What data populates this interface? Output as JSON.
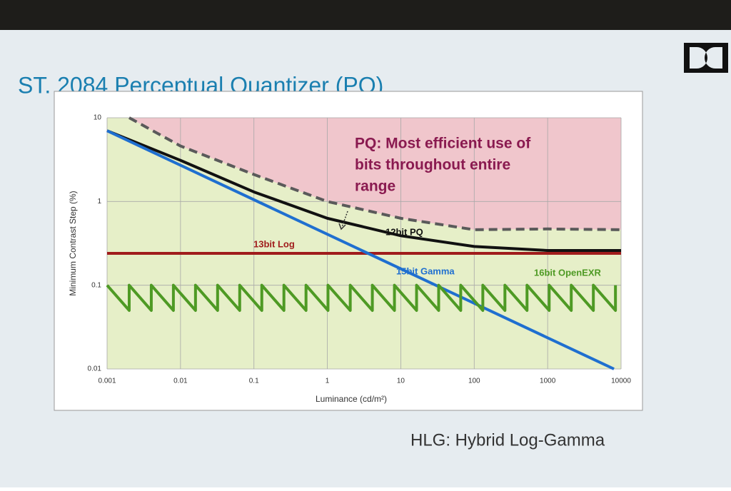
{
  "slide": {
    "title": "ST. 2084 Perceptual Quantizer (PQ)",
    "footer": "HLG: Hybrid Log-Gamma"
  },
  "chart_data": {
    "type": "line",
    "xlabel": "Luminance (cd/m²)",
    "ylabel": "Minimum Contrast Step (%)",
    "annotation": [
      "PQ: Most efficient use of",
      "bits throughout entire",
      "range"
    ],
    "xscale": "log",
    "yscale": "log",
    "grid": true,
    "xlim": [
      0.001,
      10000
    ],
    "ylim": [
      0.01,
      10
    ],
    "xticks": [
      0.001,
      0.01,
      0.1,
      1,
      10,
      100,
      1000,
      10000
    ],
    "yticks": [
      0.01,
      0.1,
      1,
      10
    ],
    "series": [
      {
        "color": "#5a5a5a",
        "dashed": true,
        "x": [
          0.002,
          0.01,
          0.1,
          1,
          10,
          100,
          1000,
          10000
        ],
        "values": [
          10,
          4.6,
          2.1,
          1.0,
          0.63,
          0.46,
          0.47,
          0.46
        ]
      },
      {
        "name": "12bit PQ",
        "color": "#111111",
        "x": [
          0.001,
          0.01,
          0.1,
          1,
          10,
          100,
          1000,
          10000
        ],
        "values": [
          7,
          3.1,
          1.3,
          0.63,
          0.39,
          0.29,
          0.26,
          0.26
        ]
      },
      {
        "name": "13bit Log",
        "color": "#a01c1c",
        "x": [
          0.001,
          10000
        ],
        "values": [
          0.24,
          0.24
        ]
      },
      {
        "name": "15bit Gamma",
        "color": "#1f6fd0",
        "x": [
          0.001,
          8000
        ],
        "values": [
          7,
          0.01
        ]
      },
      {
        "name": "16bit OpenEXR",
        "color": "#4e9a24",
        "x": [
          0.001,
          0.002,
          0.002,
          0.004,
          0.004,
          0.008,
          0.008,
          0.016,
          0.016,
          0.032,
          0.032,
          0.064,
          0.064,
          0.128,
          0.128,
          0.256,
          0.256,
          0.512,
          0.512,
          1.02,
          1.02,
          2.05,
          2.05,
          4.1,
          4.1,
          8.2,
          8.2,
          16.4,
          16.4,
          32.8,
          32.8,
          65.5,
          65.5,
          131,
          131,
          262,
          262,
          524,
          524,
          1049,
          1049,
          2097,
          2097,
          4194,
          4194,
          8389,
          8389
        ],
        "values": [
          0.1,
          0.05,
          0.1,
          0.05,
          0.1,
          0.05,
          0.1,
          0.05,
          0.1,
          0.05,
          0.1,
          0.05,
          0.1,
          0.05,
          0.1,
          0.05,
          0.1,
          0.05,
          0.1,
          0.05,
          0.1,
          0.05,
          0.1,
          0.05,
          0.1,
          0.05,
          0.1,
          0.05,
          0.1,
          0.05,
          0.1,
          0.05,
          0.1,
          0.05,
          0.1,
          0.05,
          0.1,
          0.05,
          0.1,
          0.05,
          0.1,
          0.05,
          0.1,
          0.05,
          0.1,
          0.05,
          0.1
        ]
      }
    ]
  }
}
